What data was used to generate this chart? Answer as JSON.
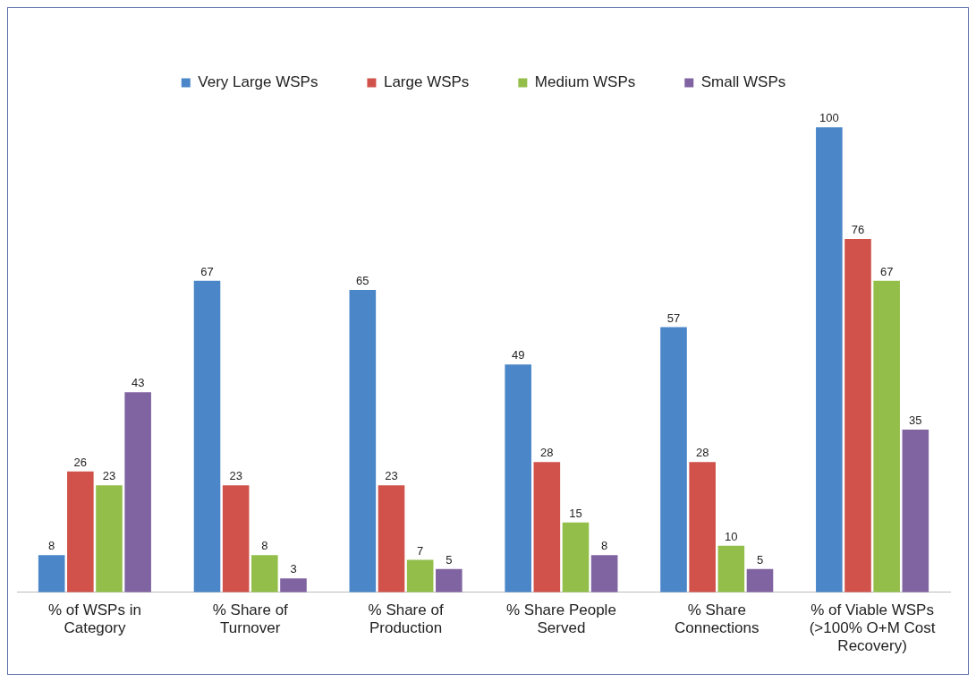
{
  "chart_data": {
    "type": "bar",
    "categories": [
      "% of WSPs in Category",
      "% Share of Turnover",
      "% Share of Production",
      "% Share People Served",
      "% Share Connections",
      "% of Viable WSPs (>100% O+M Cost Recovery)"
    ],
    "series": [
      {
        "name": "Very Large WSPs",
        "color": "#4a86c8",
        "values": [
          8,
          67,
          65,
          49,
          57,
          100
        ]
      },
      {
        "name": "Large WSPs",
        "color": "#d0524a",
        "values": [
          26,
          23,
          23,
          28,
          28,
          76
        ]
      },
      {
        "name": "Medium WSPs",
        "color": "#93be4a",
        "values": [
          23,
          8,
          7,
          15,
          10,
          67
        ]
      },
      {
        "name": "Small WSPs",
        "color": "#8064a2",
        "values": [
          43,
          3,
          5,
          8,
          5,
          35
        ]
      }
    ],
    "data_labels": true,
    "legend": "top",
    "grid": false
  }
}
